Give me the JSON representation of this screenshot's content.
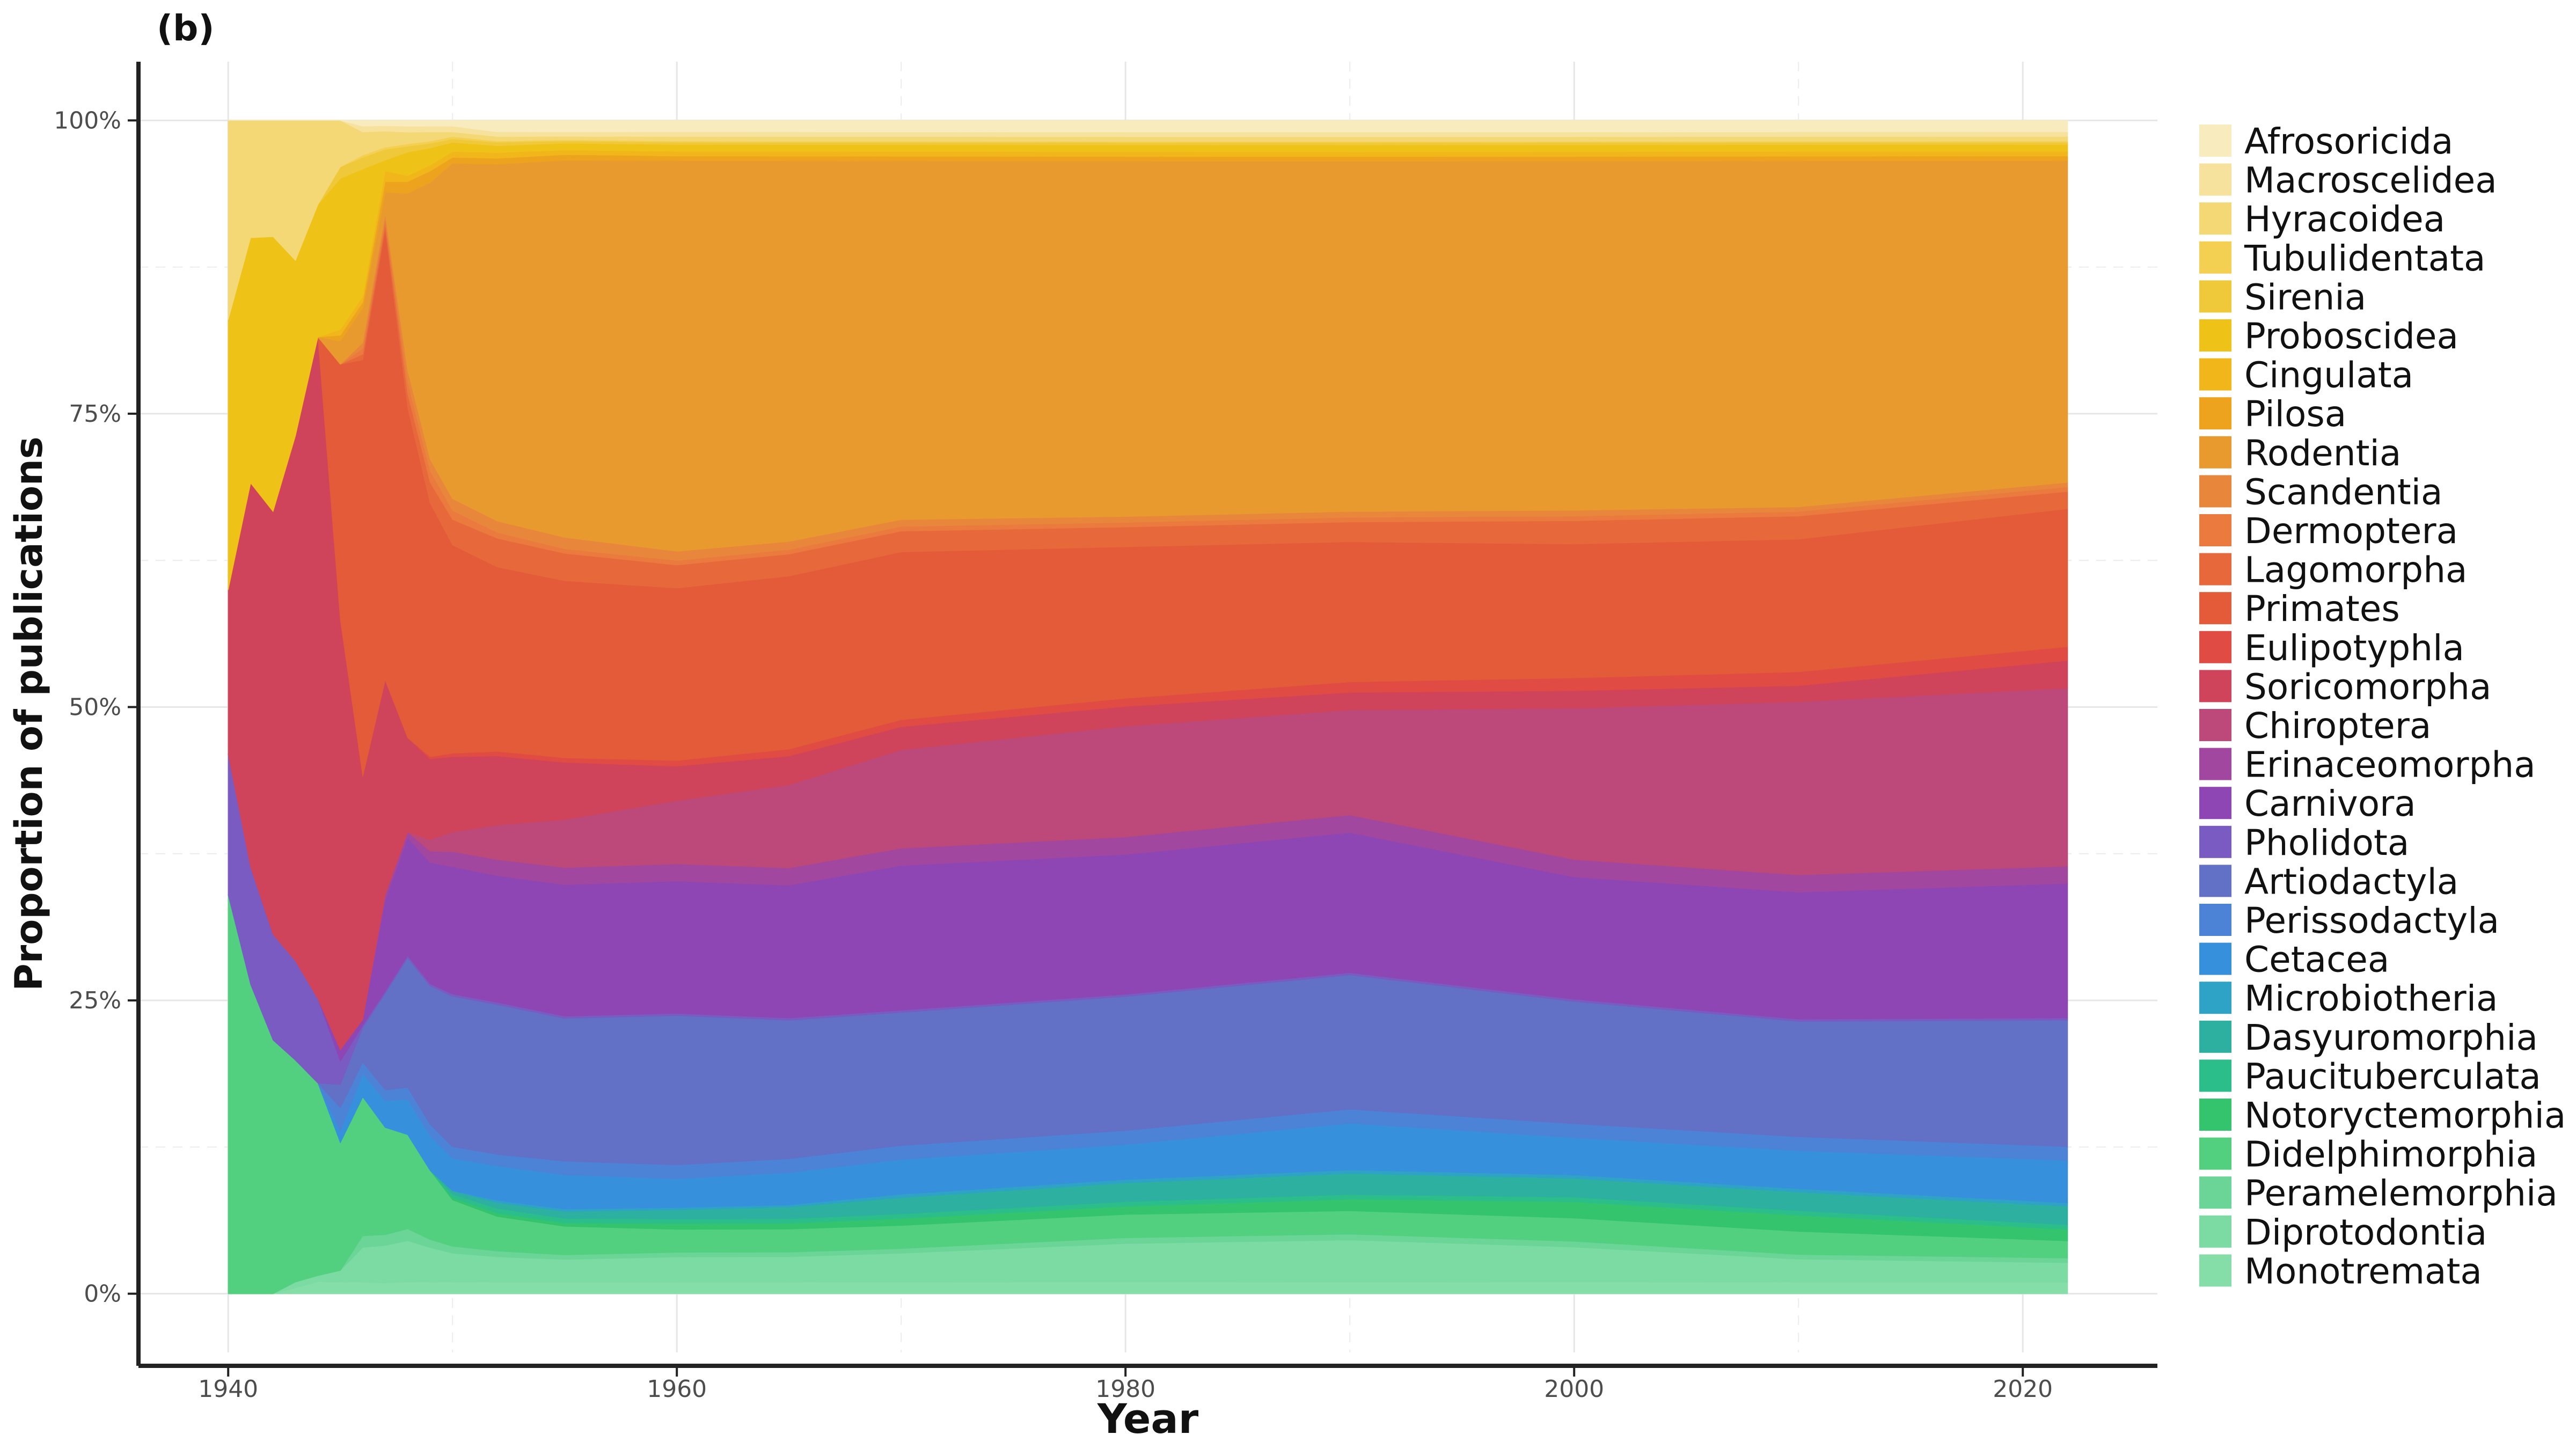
{
  "chart_data": {
    "type": "area",
    "stacked": "proportional",
    "panel_label": "(b)",
    "xlabel": "Year",
    "ylabel": "Proportion of publications",
    "xlim": [
      1936,
      2026
    ],
    "ylim": [
      -0.05,
      1.05
    ],
    "x_ticks": [
      1940,
      1960,
      1980,
      2000,
      2020
    ],
    "x_tick_labels": [
      "1940",
      "1960",
      "1980",
      "2000",
      "2020"
    ],
    "y_ticks": [
      0,
      0.25,
      0.5,
      0.75,
      1.0
    ],
    "y_tick_labels": [
      "0%",
      "25%",
      "50%",
      "75%",
      "100%"
    ],
    "grid": true,
    "legend_position": "right",
    "x": [
      1940,
      1941,
      1942,
      1943,
      1944,
      1945,
      1946,
      1947,
      1948,
      1949,
      1950,
      1952,
      1955,
      1960,
      1965,
      1970,
      1980,
      1990,
      2000,
      2010,
      2022
    ],
    "series": [
      {
        "name": "Monotremata",
        "color": "#85DDA8",
        "values": [
          0,
          0,
          0,
          0.005,
          0.01,
          0.01,
          0.01,
          0.01,
          0.01,
          0.01,
          0.01,
          0.01,
          0.01,
          0.01,
          0.01,
          0.01,
          0.01,
          0.01,
          0.01,
          0.01,
          0.01
        ]
      },
      {
        "name": "Diprotodontia",
        "color": "#7BDBA2",
        "values": [
          0,
          0,
          0,
          0.005,
          0.005,
          0.01,
          0.03,
          0.035,
          0.035,
          0.03,
          0.025,
          0.022,
          0.02,
          0.022,
          0.022,
          0.025,
          0.033,
          0.036,
          0.03,
          0.02,
          0.017
        ]
      },
      {
        "name": "Peramelemorphia",
        "color": "#6AD596",
        "values": [
          0,
          0,
          0,
          0,
          0,
          0,
          0.01,
          0.01,
          0.01,
          0.007,
          0.006,
          0.005,
          0.004,
          0.004,
          0.004,
          0.004,
          0.005,
          0.005,
          0.005,
          0.004,
          0.004
        ]
      },
      {
        "name": "Didelphimorphia",
        "color": "#52D07F",
        "values": [
          0.34,
          0.29,
          0.24,
          0.19,
          0.16,
          0.11,
          0.12,
          0.1,
          0.08,
          0.06,
          0.04,
          0.03,
          0.025,
          0.02,
          0.02,
          0.02,
          0.02,
          0.02,
          0.02,
          0.02,
          0.015
        ]
      },
      {
        "name": "Notoryctemorphia",
        "color": "#33C46D",
        "values": [
          0,
          0,
          0,
          0,
          0,
          0,
          0,
          0,
          0,
          0,
          0.002,
          0.003,
          0.003,
          0.005,
          0.005,
          0.006,
          0.007,
          0.01,
          0.014,
          0.014,
          0.01
        ]
      },
      {
        "name": "Paucituberculata",
        "color": "#2CBE8A",
        "values": [
          0,
          0,
          0,
          0,
          0,
          0,
          0,
          0,
          0,
          0,
          0.003,
          0.004,
          0.004,
          0.004,
          0.004,
          0.004,
          0.004,
          0.004,
          0.004,
          0.004,
          0.004
        ]
      },
      {
        "name": "Dasyuromorphia",
        "color": "#2DB0A0",
        "values": [
          0,
          0,
          0,
          0,
          0,
          0,
          0,
          0,
          0,
          0,
          0.003,
          0.005,
          0.006,
          0.008,
          0.01,
          0.014,
          0.016,
          0.018,
          0.016,
          0.016,
          0.016
        ]
      },
      {
        "name": "Microbiotheria",
        "color": "#2FA3C6",
        "values": [
          0,
          0,
          0,
          0,
          0,
          0,
          0,
          0,
          0,
          0,
          0,
          0.002,
          0.002,
          0.002,
          0.002,
          0.003,
          0.003,
          0.003,
          0.003,
          0.003,
          0.003
        ]
      },
      {
        "name": "Cetacea",
        "color": "#3790DC",
        "values": [
          0,
          0,
          0,
          0,
          0,
          0.01,
          0.02,
          0.025,
          0.03,
          0.03,
          0.028,
          0.03,
          0.03,
          0.025,
          0.028,
          0.03,
          0.03,
          0.04,
          0.032,
          0.033,
          0.037
        ]
      },
      {
        "name": "Perissodactyla",
        "color": "#4C83D6",
        "values": [
          0,
          0,
          0,
          0,
          0,
          0.02,
          0.01,
          0.01,
          0.01,
          0.01,
          0.01,
          0.01,
          0.012,
          0.012,
          0.012,
          0.012,
          0.012,
          0.012,
          0.012,
          0.012,
          0.012
        ]
      },
      {
        "name": "Artiodactyla",
        "color": "#6270C5",
        "values": [
          0,
          0,
          0,
          0,
          0,
          0.02,
          0.03,
          0.09,
          0.11,
          0.12,
          0.13,
          0.13,
          0.125,
          0.13,
          0.12,
          0.115,
          0.115,
          0.115,
          0.105,
          0.1,
          0.11
        ]
      },
      {
        "name": "Pholidota",
        "color": "#7A5BC2",
        "values": [
          0.12,
          0.11,
          0.1,
          0.085,
          0.07,
          0.02,
          0.002,
          0.002,
          0.002,
          0.002,
          0.002,
          0.002,
          0.002,
          0.002,
          0.002,
          0.002,
          0.002,
          0.002,
          0.002,
          0.002,
          0.002
        ]
      },
      {
        "name": "Carnivora",
        "color": "#8D46B3",
        "values": [
          0,
          0,
          0,
          0,
          0,
          0.01,
          0.005,
          0.085,
          0.1,
          0.105,
          0.11,
          0.11,
          0.115,
          0.115,
          0.115,
          0.125,
          0.12,
          0.12,
          0.105,
          0.11,
          0.117
        ]
      },
      {
        "name": "Erinaceomorpha",
        "color": "#A2479F",
        "values": [
          0,
          0,
          0,
          0,
          0,
          0,
          0,
          0.005,
          0.005,
          0.01,
          0.013,
          0.014,
          0.015,
          0.015,
          0.015,
          0.015,
          0.015,
          0.015,
          0.015,
          0.015,
          0.015
        ]
      },
      {
        "name": "Chiroptera",
        "color": "#BC4979",
        "values": [
          0,
          0,
          0,
          0,
          0,
          0,
          0,
          0,
          0,
          0.01,
          0.017,
          0.03,
          0.042,
          0.055,
          0.072,
          0.085,
          0.095,
          0.09,
          0.13,
          0.15,
          0.155
        ]
      },
      {
        "name": "Soricomorpha",
        "color": "#CF445A",
        "values": [
          0.14,
          0.36,
          0.4,
          0.45,
          0.55,
          0.37,
          0.21,
          0.2,
          0.08,
          0.07,
          0.065,
          0.06,
          0.05,
          0.03,
          0.025,
          0.02,
          0.017,
          0.015,
          0.015,
          0.014,
          0.024
        ]
      },
      {
        "name": "Eulipotyphla",
        "color": "#E04B44",
        "values": [
          0,
          0,
          0,
          0,
          0,
          0,
          0,
          0,
          0,
          0.002,
          0.003,
          0.004,
          0.004,
          0.005,
          0.006,
          0.006,
          0.007,
          0.009,
          0.011,
          0.012,
          0.012
        ]
      },
      {
        "name": "Primates",
        "color": "#E35B38",
        "values": [
          0,
          0,
          0,
          0,
          0,
          0.22,
          0.36,
          0.42,
          0.28,
          0.22,
          0.18,
          0.16,
          0.155,
          0.15,
          0.15,
          0.145,
          0.13,
          0.12,
          0.115,
          0.115,
          0.12
        ]
      },
      {
        "name": "Lagomorpha",
        "color": "#E7683A",
        "values": [
          0,
          0,
          0,
          0,
          0,
          0,
          0.005,
          0.005,
          0.012,
          0.018,
          0.022,
          0.025,
          0.024,
          0.02,
          0.019,
          0.018,
          0.017,
          0.017,
          0.02,
          0.02,
          0.015
        ]
      },
      {
        "name": "Dermoptera",
        "color": "#EA7A3D",
        "values": [
          0,
          0,
          0,
          0,
          0,
          0,
          0.005,
          0.005,
          0.01,
          0.01,
          0.008,
          0.005,
          0.004,
          0.004,
          0.004,
          0.004,
          0.004,
          0.004,
          0.004,
          0.004,
          0.004
        ]
      },
      {
        "name": "Scandentia",
        "color": "#E8873C",
        "values": [
          0,
          0,
          0,
          0,
          0,
          0,
          0.005,
          0.005,
          0.01,
          0.01,
          0.01,
          0.01,
          0.01,
          0.008,
          0.007,
          0.006,
          0.005,
          0.005,
          0.005,
          0.004,
          0.004
        ]
      },
      {
        "name": "Rodentia",
        "color": "#E99A2F",
        "values": [
          0,
          0,
          0,
          0,
          0,
          0.02,
          0.03,
          0.02,
          0.15,
          0.24,
          0.29,
          0.31,
          0.33,
          0.34,
          0.33,
          0.31,
          0.305,
          0.3,
          0.3,
          0.3,
          0.28
        ]
      },
      {
        "name": "Pilosa",
        "color": "#EEA31F",
        "values": [
          0,
          0,
          0,
          0,
          0,
          0.005,
          0.005,
          0.01,
          0.01,
          0.01,
          0.005,
          0.005,
          0.005,
          0.004,
          0.004,
          0.004,
          0.004,
          0.004,
          0.004,
          0.004,
          0.004
        ]
      },
      {
        "name": "Cingulata",
        "color": "#F1B619",
        "values": [
          0,
          0,
          0,
          0,
          0,
          0.005,
          0.005,
          0.01,
          0.005,
          0.005,
          0.005,
          0.005,
          0.004,
          0.004,
          0.004,
          0.004,
          0.004,
          0.004,
          0.004,
          0.004,
          0.004
        ]
      },
      {
        "name": "Proboscidea",
        "color": "#EFC218",
        "values": [
          0.23,
          0.23,
          0.26,
          0.15,
          0.11,
          0.13,
          0.11,
          0.01,
          0.02,
          0.015,
          0.008,
          0.006,
          0.006,
          0.006,
          0.006,
          0.006,
          0.006,
          0.006,
          0.006,
          0.006,
          0.006
        ]
      },
      {
        "name": "Sirenia",
        "color": "#F0C93A",
        "values": [
          0,
          0,
          0,
          0,
          0,
          0.01,
          0.01,
          0.01,
          0.005,
          0.004,
          0.003,
          0.003,
          0.002,
          0.002,
          0.002,
          0.002,
          0.002,
          0.002,
          0.002,
          0.002,
          0.002
        ]
      },
      {
        "name": "Tubulidentata",
        "color": "#F3D051",
        "values": [
          0,
          0,
          0,
          0,
          0,
          0,
          0.002,
          0.002,
          0.002,
          0.002,
          0.002,
          0.001,
          0.001,
          0.001,
          0.001,
          0.001,
          0.001,
          0.001,
          0.001,
          0.001,
          0.001
        ]
      },
      {
        "name": "Hyracoidea",
        "color": "#F4D876",
        "values": [
          0.17,
          0.11,
          0.11,
          0.12,
          0.07,
          0.04,
          0.02,
          0.015,
          0.01,
          0.008,
          0.004,
          0.004,
          0.003,
          0.004,
          0.004,
          0.004,
          0.004,
          0.004,
          0.004,
          0.004,
          0.004
        ]
      },
      {
        "name": "Macroscelidea",
        "color": "#F6E29D",
        "values": [
          0,
          0,
          0,
          0,
          0,
          0,
          0.005,
          0.005,
          0.005,
          0.005,
          0.005,
          0.004,
          0.004,
          0.004,
          0.004,
          0.004,
          0.004,
          0.004,
          0.004,
          0.004,
          0.004
        ]
      },
      {
        "name": "Afrosoricida",
        "color": "#F8EBBD",
        "values": [
          0,
          0,
          0,
          0,
          0,
          0,
          0.005,
          0.005,
          0.005,
          0.005,
          0.005,
          0.01,
          0.01,
          0.01,
          0.01,
          0.01,
          0.01,
          0.01,
          0.01,
          0.01,
          0.01
        ]
      }
    ]
  }
}
